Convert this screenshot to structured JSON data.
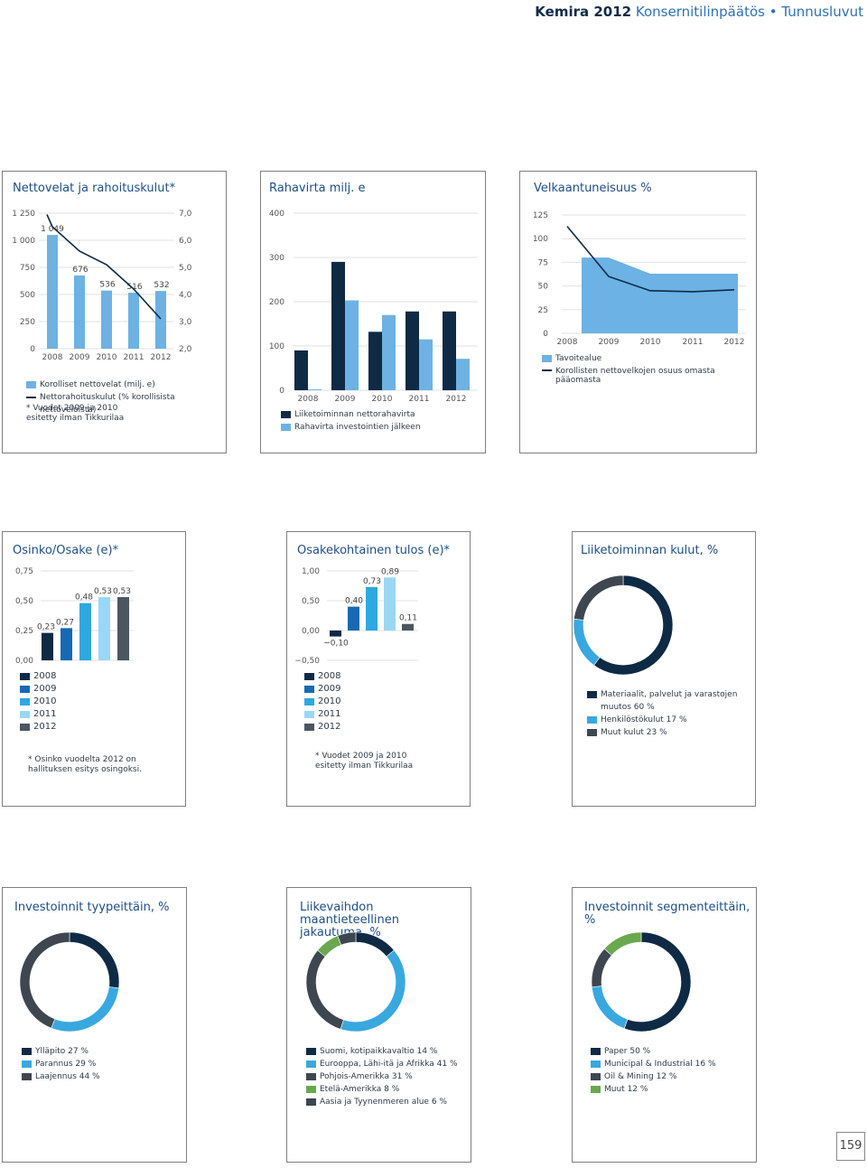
{
  "header": {
    "brand": "Kemira 2012",
    "subtitle": "Konsernitilinpäätös • Tunnusluvut"
  },
  "page_number": "159",
  "colors": {
    "c2008": "#0e2a45",
    "c2009": "#1769b3",
    "c2010": "#2ea8e0",
    "c2011": "#9ad7f3",
    "c2012": "#4b5660",
    "bar_light": "#6db2e3",
    "bar_dark": "#0e2a45",
    "band": "#6cb2e4",
    "navy": "#0e2a45",
    "cyan": "#39a8e0",
    "grey": "#3e4650",
    "green": "#6aa84f"
  },
  "panels": {
    "nettovelat": {
      "title": "Nettovelat ja rahoituskulut*",
      "legend_bar": "Korolliset nettovelat (milj. e)",
      "legend_line": "Nettorahoituskulut (% korollisista nettoveloista)",
      "note": "* Vuodet 2009 ja 2010 esitetty ilman Tikkurilaa",
      "left_ticks": [
        "1 250",
        "1 000",
        "750",
        "500",
        "250",
        "0"
      ],
      "right_ticks": [
        "7,0",
        "6,0",
        "5,0",
        "4,0",
        "3,0",
        "2,0"
      ],
      "value_labels": [
        "1 049",
        "676",
        "536",
        "516",
        "532"
      ]
    },
    "rahavirta": {
      "title": "Rahavirta milj. e",
      "legend1": "Liiketoiminnan nettorahavirta",
      "legend2": "Rahavirta investointien jälkeen",
      "ticks": [
        "400",
        "300",
        "200",
        "100",
        "0"
      ]
    },
    "velkaantuneisuus": {
      "title": "Velkaantuneisuus %",
      "legend_band": "Tavoitealue",
      "legend_line": "Korollisten nettovelkojen osuus omasta pääomasta",
      "ticks": [
        "125",
        "100",
        "75",
        "50",
        "25",
        "0"
      ]
    },
    "osinko": {
      "title": "Osinko/Osake (e)*",
      "ticks": [
        "0,75",
        "0,50",
        "0,25",
        "0,00"
      ],
      "value_labels": [
        "0,23",
        "0,27",
        "0,48",
        "0,53",
        "0,53"
      ],
      "note": "* Osinko vuodelta 2012 on hallituksen esitys osingoksi."
    },
    "eps": {
      "title": "Osakekohtainen tulos (e)*",
      "ticks": [
        "1,00",
        "0,50",
        "0,00",
        "−0,50"
      ],
      "value_labels": [
        "−0,10",
        "0,40",
        "0,73",
        "0,89",
        "0,11"
      ],
      "note": "* Vuodet 2009 ja 2010 esitetty ilman Tikkurilaa"
    },
    "kulut": {
      "title": "Liiketoiminnan kulut, %",
      "legend": [
        "Materiaalit, palvelut ja varastojen muutos 60 %",
        "Henkilöstökulut 17 %",
        "Muut kulut 23 %"
      ]
    },
    "investoinnit_tyyp": {
      "title": "Investoinnit tyypeittäin, %",
      "legend": [
        "Ylläpito 27 %",
        "Parannus 29 %",
        "Laajennus 44 %"
      ]
    },
    "liikevaihto": {
      "title": "Liikevaihdon maantieteellinen jakautuma, %",
      "legend": [
        "Suomi, kotipaikkavaltio 14 %",
        "Eurooppa, Lähi-itä ja Afrikka 41 %",
        "Pohjois-Amerikka 31 %",
        "Etelä-Amerikka 8 %",
        "Aasia ja Tyynenmeren alue 6 %"
      ]
    },
    "investoinnit_seg": {
      "title": "Investoinnit segmenteittäin, %",
      "legend": [
        "Paper 50 %",
        "Municipal & Industrial 16 %",
        "Oil & Mining 12 %",
        "Muut 12 %"
      ]
    }
  },
  "chart_data": [
    {
      "type": "bar",
      "title": "Nettovelat ja rahoituskulut*",
      "categories": [
        "2008",
        "2009",
        "2010",
        "2011",
        "2012"
      ],
      "series": [
        {
          "name": "Korolliset nettovelat (milj. e)",
          "values": [
            1049,
            676,
            536,
            516,
            532
          ]
        },
        {
          "name": "Nettorahoituskulut (% korollisista nettoveloista)",
          "type": "line",
          "axis": "right",
          "values": [
            6.5,
            5.6,
            5.1,
            4.2,
            3.1
          ]
        }
      ],
      "ylim": [
        0,
        1250
      ],
      "y2lim": [
        2,
        7
      ]
    },
    {
      "type": "bar",
      "title": "Rahavirta milj. e",
      "categories": [
        "2008",
        "2009",
        "2010",
        "2011",
        "2012"
      ],
      "series": [
        {
          "name": "Liiketoiminnan nettorahavirta",
          "values": [
            90,
            290,
            132,
            178,
            178
          ]
        },
        {
          "name": "Rahavirta investointien jälkeen",
          "values": [
            2,
            203,
            170,
            115,
            71
          ]
        }
      ],
      "ylim": [
        0,
        400
      ]
    },
    {
      "type": "line",
      "title": "Velkaantuneisuus %",
      "categories": [
        "2008",
        "2009",
        "2010",
        "2011",
        "2012"
      ],
      "series": [
        {
          "name": "Korollisten nettovelkojen osuus omasta pääomasta",
          "values": [
            113,
            60,
            45,
            44,
            46
          ]
        },
        {
          "name": "Tavoitealue",
          "type": "area",
          "lower": [
            40,
            40,
            40,
            40,
            40
          ],
          "upper": [
            80,
            80,
            63,
            63,
            63
          ]
        }
      ],
      "ylim": [
        0,
        125
      ]
    },
    {
      "type": "bar",
      "title": "Osinko/Osake (e)*",
      "categories": [
        "2008",
        "2009",
        "2010",
        "2011",
        "2012"
      ],
      "values": [
        0.23,
        0.27,
        0.48,
        0.53,
        0.53
      ],
      "ylim": [
        0,
        0.75
      ]
    },
    {
      "type": "bar",
      "title": "Osakekohtainen tulos (e)*",
      "categories": [
        "2008",
        "2009",
        "2010",
        "2011",
        "2012"
      ],
      "values": [
        -0.1,
        0.4,
        0.73,
        0.89,
        0.11
      ],
      "ylim": [
        -0.5,
        1.0
      ]
    },
    {
      "type": "pie",
      "title": "Liiketoiminnan kulut, %",
      "labels": [
        "Materiaalit, palvelut ja varastojen muutos",
        "Henkilöstökulut",
        "Muut kulut"
      ],
      "values": [
        60,
        17,
        23
      ]
    },
    {
      "type": "pie",
      "title": "Investoinnit tyypeittäin, %",
      "labels": [
        "Ylläpito",
        "Parannus",
        "Laajennus"
      ],
      "values": [
        27,
        29,
        44
      ]
    },
    {
      "type": "pie",
      "title": "Liikevaihdon maantieteellinen jakautuma, %",
      "labels": [
        "Suomi, kotipaikkavaltio",
        "Eurooppa, Lähi-itä ja Afrikka",
        "Pohjois-Amerikka",
        "Etelä-Amerikka",
        "Aasia ja Tyynenmeren alue"
      ],
      "values": [
        14,
        41,
        31,
        8,
        6
      ]
    },
    {
      "type": "pie",
      "title": "Investoinnit segmenteittäin, %",
      "labels": [
        "Paper",
        "Municipal & Industrial",
        "Oil & Mining",
        "Muut"
      ],
      "values": [
        50,
        16,
        12,
        12
      ]
    }
  ]
}
